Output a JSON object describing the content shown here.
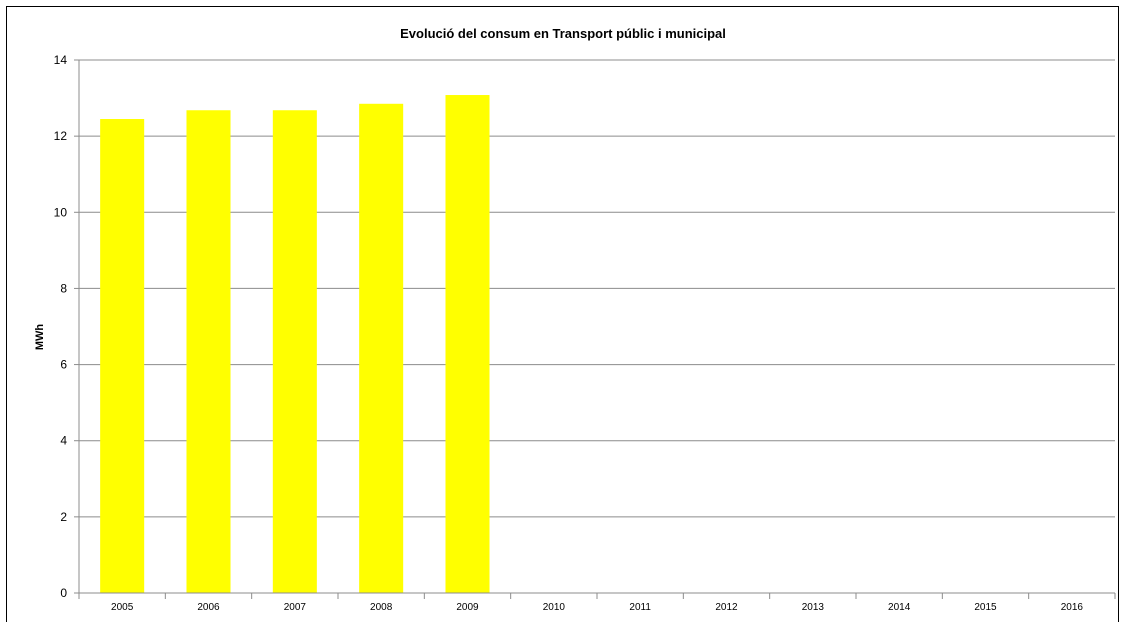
{
  "chart_data": {
    "type": "bar",
    "title": "Evolució del consum  en Transport  públic i municipal",
    "xlabel": "",
    "ylabel": "MWh",
    "categories": [
      "2005",
      "2006",
      "2007",
      "2008",
      "2009",
      "2010",
      "2011",
      "2012",
      "2013",
      "2014",
      "2015",
      "2016"
    ],
    "values": [
      12.45,
      12.68,
      12.68,
      12.85,
      13.08,
      null,
      null,
      null,
      null,
      null,
      null,
      null
    ],
    "ylim": [
      0,
      14
    ],
    "yticks": [
      0,
      2,
      4,
      6,
      8,
      10,
      12,
      14
    ],
    "grid": "horizontal",
    "legend": "none",
    "bar_color": "#FFFF00"
  }
}
